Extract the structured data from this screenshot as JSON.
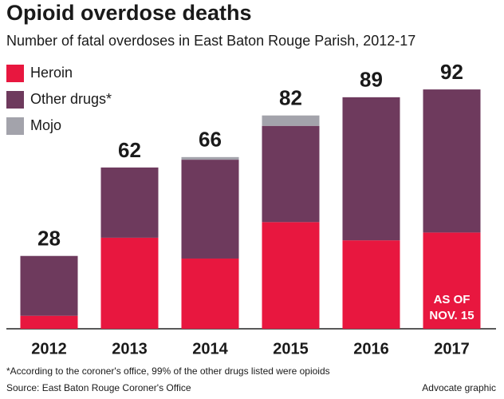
{
  "chart_data": {
    "type": "stacked-bar",
    "title": "Opioid overdose deaths",
    "subtitle": "Number of fatal overdoses in East Baton Rouge Parish, 2012-17",
    "categories": [
      "2012",
      "2013",
      "2014",
      "2015",
      "2016",
      "2017"
    ],
    "series": [
      {
        "name": "Heroin",
        "color": "#e8173f",
        "values": [
          5,
          35,
          27,
          41,
          34,
          37
        ]
      },
      {
        "name": "Other drugs*",
        "color": "#6e3a5d",
        "values": [
          23,
          27,
          38,
          37,
          55,
          55
        ]
      },
      {
        "name": "Mojo",
        "color": "#a3a3ab",
        "values": [
          0,
          0,
          1,
          4,
          0,
          0
        ]
      }
    ],
    "totals": [
      28,
      62,
      66,
      82,
      89,
      92
    ],
    "annotation": [
      "AS OF",
      "NOV. 15"
    ],
    "ylim": [
      0,
      100
    ],
    "footnote": "*According to the coroner's office, 99% of the other drugs listed were opioids",
    "source": "Source: East Baton Rouge Coroner's Office",
    "credit": "Advocate graphic"
  }
}
